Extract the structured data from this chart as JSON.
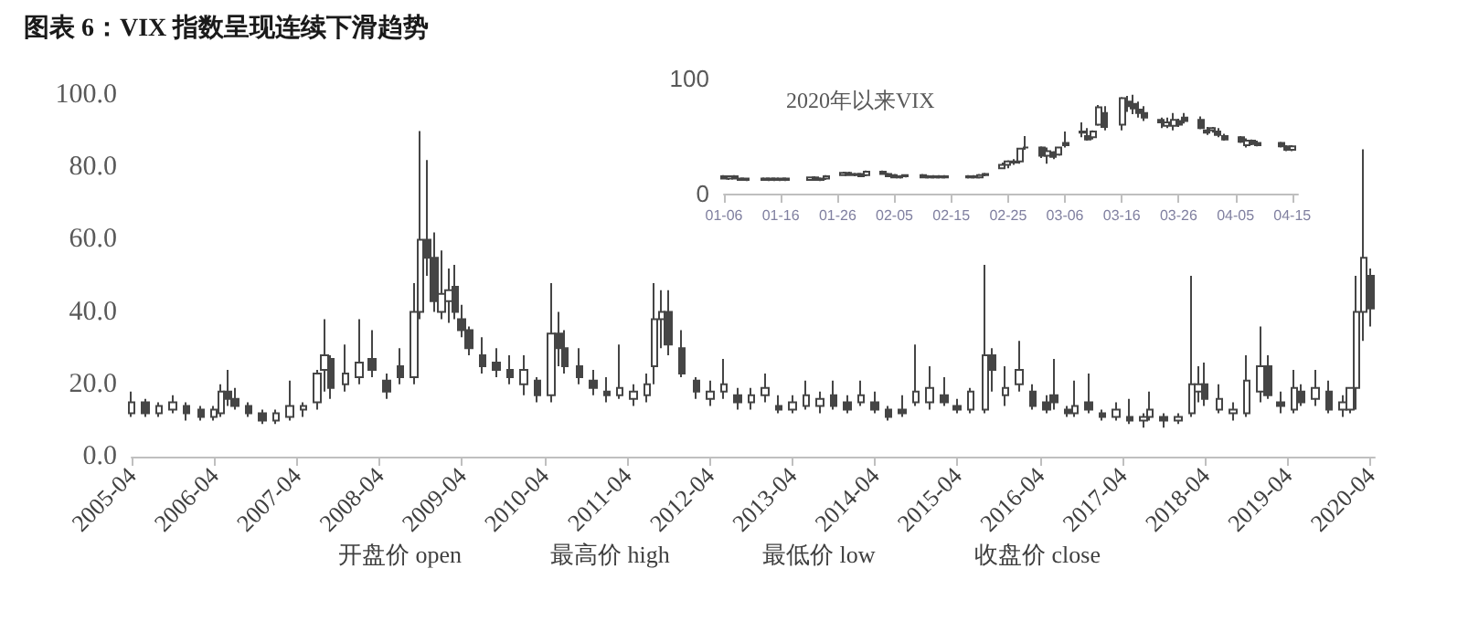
{
  "chart_data": [
    {
      "type": "candlestick",
      "title": "图表 6：VIX 指数呈现连续下滑趋势",
      "color": "#454545",
      "x": [
        "2005-04",
        "2005-06",
        "2005-08",
        "2005-10",
        "2005-12",
        "2006-02",
        "2006-04",
        "2006-05",
        "2006-06",
        "2006-07",
        "2006-09",
        "2006-11",
        "2007-01",
        "2007-03",
        "2007-05",
        "2007-07",
        "2007-08",
        "2007-09",
        "2007-11",
        "2008-01",
        "2008-03",
        "2008-05",
        "2008-07",
        "2008-09",
        "2008-10",
        "2008-11",
        "2008-12",
        "2009-01",
        "2009-02",
        "2009-03",
        "2009-04",
        "2009-05",
        "2009-07",
        "2009-09",
        "2009-11",
        "2010-01",
        "2010-03",
        "2010-05",
        "2010-06",
        "2010-07",
        "2010-09",
        "2010-11",
        "2011-01",
        "2011-03",
        "2011-05",
        "2011-07",
        "2011-08",
        "2011-09",
        "2011-10",
        "2011-12",
        "2012-02",
        "2012-04",
        "2012-06",
        "2012-08",
        "2012-10",
        "2012-12",
        "2013-02",
        "2013-04",
        "2013-06",
        "2013-08",
        "2013-10",
        "2013-12",
        "2014-02",
        "2014-04",
        "2014-06",
        "2014-08",
        "2014-10",
        "2014-12",
        "2015-02",
        "2015-04",
        "2015-06",
        "2015-08",
        "2015-09",
        "2015-11",
        "2016-01",
        "2016-03",
        "2016-05",
        "2016-06",
        "2016-08",
        "2016-09",
        "2016-11",
        "2017-01",
        "2017-03",
        "2017-05",
        "2017-07",
        "2017-08",
        "2017-10",
        "2017-12",
        "2018-02",
        "2018-03",
        "2018-04",
        "2018-06",
        "2018-08",
        "2018-10",
        "2018-12",
        "2019-01",
        "2019-03",
        "2019-05",
        "2019-06",
        "2019-08",
        "2019-10",
        "2019-12",
        "2020-01",
        "2020-02",
        "2020-03",
        "2020-04"
      ],
      "ohlc": [
        [
          12,
          18,
          11,
          15
        ],
        [
          15,
          16,
          11,
          12
        ],
        [
          12,
          15,
          11,
          14
        ],
        [
          13,
          17,
          12,
          15
        ],
        [
          14,
          15,
          10,
          12
        ],
        [
          13,
          14,
          10,
          11
        ],
        [
          11,
          14,
          10,
          13
        ],
        [
          12,
          20,
          11,
          18
        ],
        [
          18,
          24,
          14,
          16
        ],
        [
          16,
          19,
          13,
          14
        ],
        [
          14,
          15,
          11,
          12
        ],
        [
          12,
          13,
          9,
          10
        ],
        [
          10,
          13,
          9,
          12
        ],
        [
          11,
          21,
          10,
          14
        ],
        [
          13,
          15,
          11,
          14
        ],
        [
          15,
          24,
          13,
          23
        ],
        [
          24,
          38,
          18,
          28
        ],
        [
          27,
          28,
          16,
          19
        ],
        [
          20,
          31,
          18,
          23
        ],
        [
          22,
          38,
          20,
          26
        ],
        [
          27,
          35,
          22,
          24
        ],
        [
          21,
          23,
          16,
          18
        ],
        [
          25,
          30,
          20,
          22
        ],
        [
          22,
          48,
          20,
          40
        ],
        [
          40,
          90,
          38,
          60
        ],
        [
          60,
          82,
          50,
          55
        ],
        [
          55,
          62,
          40,
          43
        ],
        [
          40,
          57,
          38,
          45
        ],
        [
          43,
          52,
          37,
          46
        ],
        [
          47,
          53,
          38,
          40
        ],
        [
          38,
          42,
          33,
          35
        ],
        [
          35,
          36,
          28,
          30
        ],
        [
          28,
          33,
          23,
          25
        ],
        [
          26,
          30,
          22,
          24
        ],
        [
          24,
          28,
          20,
          22
        ],
        [
          20,
          28,
          17,
          24
        ],
        [
          21,
          22,
          15,
          17
        ],
        [
          17,
          48,
          15,
          34
        ],
        [
          34,
          40,
          25,
          30
        ],
        [
          30,
          35,
          23,
          25
        ],
        [
          25,
          30,
          20,
          22
        ],
        [
          21,
          24,
          17,
          19
        ],
        [
          18,
          22,
          15,
          17
        ],
        [
          17,
          31,
          16,
          19
        ],
        [
          16,
          20,
          14,
          18
        ],
        [
          17,
          23,
          15,
          20
        ],
        [
          25,
          48,
          20,
          38
        ],
        [
          38,
          46,
          30,
          40
        ],
        [
          40,
          46,
          28,
          31
        ],
        [
          30,
          35,
          22,
          23
        ],
        [
          21,
          22,
          16,
          18
        ],
        [
          16,
          21,
          14,
          18
        ],
        [
          18,
          27,
          16,
          20
        ],
        [
          17,
          19,
          13,
          15
        ],
        [
          15,
          19,
          13,
          17
        ],
        [
          17,
          23,
          15,
          19
        ],
        [
          14,
          17,
          12,
          13
        ],
        [
          13,
          17,
          12,
          15
        ],
        [
          14,
          21,
          13,
          17
        ],
        [
          14,
          18,
          12,
          16
        ],
        [
          17,
          21,
          13,
          14
        ],
        [
          15,
          17,
          12,
          13
        ],
        [
          15,
          21,
          14,
          17
        ],
        [
          15,
          18,
          12,
          13
        ],
        [
          13,
          14,
          10,
          11
        ],
        [
          13,
          17,
          11,
          12
        ],
        [
          15,
          31,
          14,
          18
        ],
        [
          15,
          25,
          13,
          19
        ],
        [
          17,
          22,
          14,
          15
        ],
        [
          14,
          16,
          12,
          13
        ],
        [
          13,
          19,
          12,
          18
        ],
        [
          13,
          53,
          12,
          28
        ],
        [
          28,
          30,
          18,
          24
        ],
        [
          17,
          25,
          14,
          19
        ],
        [
          20,
          32,
          18,
          24
        ],
        [
          18,
          20,
          13,
          14
        ],
        [
          15,
          17,
          12,
          13
        ],
        [
          17,
          27,
          13,
          15
        ],
        [
          13,
          14,
          11,
          12
        ],
        [
          12,
          21,
          11,
          14
        ],
        [
          15,
          23,
          12,
          13
        ],
        [
          12,
          13,
          10,
          11
        ],
        [
          11,
          15,
          10,
          13
        ],
        [
          11,
          16,
          9,
          10
        ],
        [
          10,
          12,
          8,
          11
        ],
        [
          11,
          18,
          10,
          13
        ],
        [
          11,
          12,
          8,
          10
        ],
        [
          10,
          12,
          9,
          11
        ],
        [
          12,
          50,
          11,
          20
        ],
        [
          18,
          25,
          15,
          20
        ],
        [
          20,
          26,
          14,
          16
        ],
        [
          13,
          20,
          12,
          16
        ],
        [
          12,
          15,
          10,
          13
        ],
        [
          12,
          28,
          11,
          21
        ],
        [
          18,
          36,
          15,
          25
        ],
        [
          25,
          28,
          16,
          17
        ],
        [
          15,
          18,
          12,
          14
        ],
        [
          13,
          24,
          12,
          19
        ],
        [
          18,
          20,
          14,
          15
        ],
        [
          16,
          24,
          14,
          19
        ],
        [
          18,
          21,
          12,
          13
        ],
        [
          13,
          17,
          11,
          15
        ],
        [
          13,
          19,
          12,
          19
        ],
        [
          19,
          50,
          13,
          40
        ],
        [
          40,
          85,
          32,
          55
        ],
        [
          50,
          52,
          36,
          41
        ]
      ],
      "xlim": [
        "2005-04",
        "2020-04-20"
      ],
      "xticks": [
        "2005-04",
        "2006-04",
        "2007-04",
        "2008-04",
        "2009-04",
        "2010-04",
        "2011-04",
        "2012-04",
        "2013-04",
        "2014-04",
        "2015-04",
        "2016-04",
        "2017-04",
        "2018-04",
        "2019-04",
        "2020-04"
      ],
      "ylim": [
        0,
        100
      ],
      "yticks": [
        {
          "value": 0,
          "label": "0.0"
        },
        {
          "value": 20,
          "label": "20.0"
        },
        {
          "value": 40,
          "label": "40.0"
        },
        {
          "value": 60,
          "label": "60.0"
        },
        {
          "value": 80,
          "label": "80.0"
        },
        {
          "value": 100,
          "label": "100.0"
        }
      ],
      "annotations": [
        "开盘价 open",
        "最高价 high",
        "最低价 low",
        "收盘价 close"
      ]
    },
    {
      "type": "candlestick",
      "title": "2020年以来VIX",
      "color": "#454545",
      "x": [
        "2020-01-06",
        "2020-01-07",
        "2020-01-08",
        "2020-01-09",
        "2020-01-10",
        "2020-01-13",
        "2020-01-14",
        "2020-01-15",
        "2020-01-16",
        "2020-01-17",
        "2020-01-21",
        "2020-01-22",
        "2020-01-23",
        "2020-01-24",
        "2020-01-27",
        "2020-01-28",
        "2020-01-29",
        "2020-01-30",
        "2020-01-31",
        "2020-02-03",
        "2020-02-04",
        "2020-02-05",
        "2020-02-06",
        "2020-02-07",
        "2020-02-10",
        "2020-02-11",
        "2020-02-12",
        "2020-02-13",
        "2020-02-14",
        "2020-02-18",
        "2020-02-19",
        "2020-02-20",
        "2020-02-21",
        "2020-02-24",
        "2020-02-25",
        "2020-02-26",
        "2020-02-27",
        "2020-02-28",
        "2020-03-02",
        "2020-03-03",
        "2020-03-04",
        "2020-03-05",
        "2020-03-06",
        "2020-03-09",
        "2020-03-10",
        "2020-03-11",
        "2020-03-12",
        "2020-03-13",
        "2020-03-16",
        "2020-03-17",
        "2020-03-18",
        "2020-03-19",
        "2020-03-20",
        "2020-03-23",
        "2020-03-24",
        "2020-03-25",
        "2020-03-26",
        "2020-03-27",
        "2020-03-30",
        "2020-03-31",
        "2020-04-01",
        "2020-04-02",
        "2020-04-03",
        "2020-04-06",
        "2020-04-07",
        "2020-04-08",
        "2020-04-09",
        "2020-04-13",
        "2020-04-14",
        "2020-04-15"
      ],
      "ohlc": [
        [
          15,
          16,
          13,
          13
        ],
        [
          13,
          15,
          12,
          15
        ],
        [
          15,
          16,
          13,
          13
        ],
        [
          13,
          14,
          12,
          12
        ],
        [
          12,
          13,
          11,
          13
        ],
        [
          13,
          14,
          12,
          12
        ],
        [
          12,
          14,
          11,
          13
        ],
        [
          13,
          14,
          11,
          12
        ],
        [
          12,
          13,
          11,
          13
        ],
        [
          13,
          14,
          11,
          12
        ],
        [
          12,
          14,
          12,
          14
        ],
        [
          14,
          15,
          12,
          12
        ],
        [
          12,
          14,
          11,
          13
        ],
        [
          13,
          16,
          12,
          15
        ],
        [
          16,
          19,
          16,
          18
        ],
        [
          18,
          19,
          16,
          16
        ],
        [
          16,
          18,
          15,
          17
        ],
        [
          17,
          18,
          15,
          15
        ],
        [
          16,
          20,
          15,
          19
        ],
        [
          19,
          20,
          17,
          17
        ],
        [
          17,
          18,
          15,
          15
        ],
        [
          16,
          17,
          14,
          14
        ],
        [
          14,
          16,
          13,
          15
        ],
        [
          15,
          16,
          14,
          16
        ],
        [
          16,
          17,
          14,
          14
        ],
        [
          14,
          16,
          13,
          15
        ],
        [
          15,
          16,
          13,
          14
        ],
        [
          14,
          16,
          13,
          15
        ],
        [
          15,
          16,
          13,
          14
        ],
        [
          14,
          16,
          13,
          15
        ],
        [
          15,
          16,
          13,
          14
        ],
        [
          14,
          17,
          13,
          16
        ],
        [
          16,
          18,
          15,
          17
        ],
        [
          22,
          27,
          22,
          25
        ],
        [
          25,
          29,
          22,
          28
        ],
        [
          28,
          30,
          25,
          27
        ],
        [
          28,
          39,
          26,
          39
        ],
        [
          40,
          50,
          38,
          40
        ],
        [
          40,
          41,
          31,
          33
        ],
        [
          33,
          40,
          26,
          37
        ],
        [
          36,
          37,
          30,
          32
        ],
        [
          34,
          40,
          33,
          40
        ],
        [
          44,
          54,
          40,
          42
        ],
        [
          53,
          62,
          49,
          54
        ],
        [
          50,
          57,
          46,
          47
        ],
        [
          49,
          55,
          47,
          54
        ],
        [
          60,
          77,
          59,
          75
        ],
        [
          70,
          76,
          55,
          58
        ],
        [
          60,
          84,
          55,
          83
        ],
        [
          80,
          85,
          71,
          76
        ],
        [
          78,
          86,
          69,
          74
        ],
        [
          73,
          80,
          66,
          70
        ],
        [
          70,
          76,
          63,
          66
        ],
        [
          64,
          66,
          57,
          62
        ],
        [
          59,
          66,
          57,
          62
        ],
        [
          59,
          70,
          55,
          64
        ],
        [
          63,
          65,
          58,
          60
        ],
        [
          66,
          70,
          61,
          63
        ],
        [
          64,
          67,
          56,
          57
        ],
        [
          55,
          58,
          51,
          53
        ],
        [
          55,
          58,
          53,
          57
        ],
        [
          54,
          57,
          49,
          51
        ],
        [
          50,
          52,
          46,
          47
        ],
        [
          49,
          50,
          44,
          45
        ],
        [
          42,
          48,
          40,
          46
        ],
        [
          46,
          47,
          42,
          43
        ],
        [
          44,
          46,
          41,
          42
        ],
        [
          44,
          45,
          40,
          41
        ],
        [
          41,
          42,
          37,
          38
        ],
        [
          38,
          42,
          37,
          41
        ]
      ],
      "xlim": [
        "2020-01-06",
        "2020-04-16"
      ],
      "xticks": [
        {
          "value": "2020-01-06",
          "label": "01-06"
        },
        {
          "value": "2020-01-16",
          "label": "01-16"
        },
        {
          "value": "2020-01-26",
          "label": "01-26"
        },
        {
          "value": "2020-02-05",
          "label": "02-05"
        },
        {
          "value": "2020-02-15",
          "label": "02-15"
        },
        {
          "value": "2020-02-25",
          "label": "02-25"
        },
        {
          "value": "2020-03-06",
          "label": "03-06"
        },
        {
          "value": "2020-03-16",
          "label": "03-16"
        },
        {
          "value": "2020-03-26",
          "label": "03-26"
        },
        {
          "value": "2020-04-05",
          "label": "04-05"
        },
        {
          "value": "2020-04-15",
          "label": "04-15"
        }
      ],
      "ylim": [
        0,
        100
      ],
      "yticks": [
        0,
        100
      ]
    }
  ]
}
